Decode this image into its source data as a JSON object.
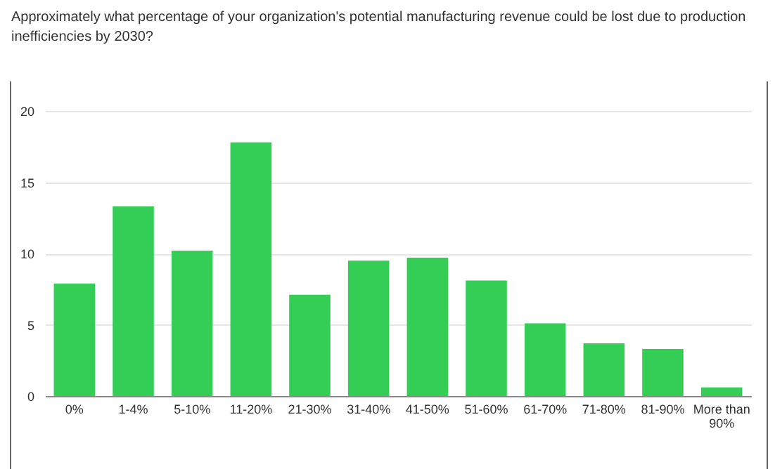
{
  "chart_data": {
    "type": "bar",
    "title": "Approximately what percentage of your organization's potential manufacturing revenue could be lost due to production inefficiencies by 2030?",
    "categories": [
      "0%",
      "1-4%",
      "5-10%",
      "11-20%",
      "21-30%",
      "31-40%",
      "41-50%",
      "51-60%",
      "61-70%",
      "71-80%",
      "81-90%",
      "More than 90%"
    ],
    "values": [
      7.9,
      13.3,
      10.2,
      17.8,
      7.1,
      9.5,
      9.7,
      8.1,
      5.1,
      3.7,
      3.3,
      0.6
    ],
    "color": "#34ce57",
    "ylim": [
      0,
      20
    ],
    "yticks": [
      0,
      5,
      10,
      15,
      20
    ],
    "grid": "y"
  }
}
